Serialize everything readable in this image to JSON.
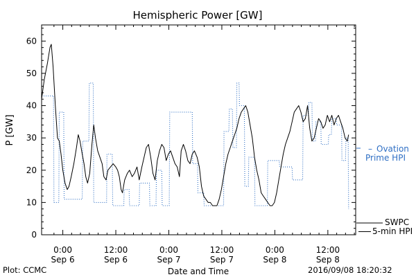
{
  "chart_data": {
    "type": "line",
    "title": "Hemispheric Power [GW]",
    "xlabel": "Date and Time",
    "ylabel": "P [GW]",
    "ylim": [
      0,
      65
    ],
    "yticks": [
      0,
      10,
      20,
      30,
      40,
      50,
      60
    ],
    "x_unit": "hours since 2016-09-05 00:00",
    "xlim": [
      19.2,
      90.3
    ],
    "xticks": [
      {
        "x": 24,
        "time": "0:00",
        "date": "Sep 6"
      },
      {
        "x": 36,
        "time": "12:00",
        "date": "Sep 6"
      },
      {
        "x": 48,
        "time": "0:00",
        "date": "Sep 7"
      },
      {
        "x": 60,
        "time": "12:00",
        "date": "Sep 7"
      },
      {
        "x": 72,
        "time": "0:00",
        "date": "Sep 8"
      },
      {
        "x": 84,
        "time": "12:00",
        "date": "Sep 8"
      }
    ],
    "series": [
      {
        "name": "SWPC 5-min HPI",
        "color": "#000000",
        "style": "solid",
        "points": [
          [
            19.2,
            42
          ],
          [
            19.8,
            48
          ],
          [
            20.5,
            53
          ],
          [
            21.1,
            58
          ],
          [
            21.4,
            59
          ],
          [
            21.8,
            52
          ],
          [
            22.3,
            40
          ],
          [
            22.8,
            30
          ],
          [
            23.2,
            29
          ],
          [
            23.6,
            25
          ],
          [
            24.0,
            20
          ],
          [
            24.5,
            16
          ],
          [
            25.0,
            14
          ],
          [
            25.4,
            15
          ],
          [
            25.9,
            18
          ],
          [
            26.5,
            22
          ],
          [
            27.1,
            27
          ],
          [
            27.5,
            31
          ],
          [
            27.9,
            29
          ],
          [
            28.4,
            25
          ],
          [
            28.8,
            22
          ],
          [
            29.2,
            18
          ],
          [
            29.6,
            16
          ],
          [
            30.1,
            19
          ],
          [
            30.6,
            28
          ],
          [
            31.0,
            34
          ],
          [
            31.4,
            30
          ],
          [
            31.9,
            26
          ],
          [
            32.4,
            24
          ],
          [
            32.9,
            22
          ],
          [
            33.3,
            18
          ],
          [
            33.8,
            17
          ],
          [
            34.2,
            20
          ],
          [
            34.8,
            21
          ],
          [
            35.4,
            22
          ],
          [
            36.0,
            21
          ],
          [
            36.4,
            20
          ],
          [
            36.8,
            18
          ],
          [
            37.2,
            14
          ],
          [
            37.5,
            13
          ],
          [
            38.0,
            17
          ],
          [
            38.6,
            19
          ],
          [
            39.1,
            20
          ],
          [
            39.7,
            18
          ],
          [
            40.2,
            19
          ],
          [
            40.8,
            21
          ],
          [
            41.3,
            17
          ],
          [
            41.9,
            21
          ],
          [
            42.4,
            24
          ],
          [
            42.9,
            27
          ],
          [
            43.4,
            28
          ],
          [
            43.9,
            24
          ],
          [
            44.4,
            19
          ],
          [
            44.9,
            17
          ],
          [
            45.4,
            23
          ],
          [
            45.9,
            26
          ],
          [
            46.4,
            28
          ],
          [
            46.9,
            27
          ],
          [
            47.4,
            23
          ],
          [
            47.9,
            25
          ],
          [
            48.4,
            26
          ],
          [
            48.9,
            24
          ],
          [
            49.4,
            22
          ],
          [
            49.9,
            21
          ],
          [
            50.4,
            18
          ],
          [
            50.8,
            26
          ],
          [
            51.3,
            28
          ],
          [
            51.8,
            26
          ],
          [
            52.3,
            23
          ],
          [
            52.8,
            22
          ],
          [
            53.3,
            25
          ],
          [
            53.8,
            26
          ],
          [
            54.4,
            24
          ],
          [
            54.9,
            21
          ],
          [
            55.4,
            15
          ],
          [
            55.9,
            12
          ],
          [
            56.4,
            11
          ],
          [
            56.9,
            10
          ],
          [
            57.4,
            10
          ],
          [
            57.9,
            9
          ],
          [
            58.4,
            9
          ],
          [
            58.9,
            9
          ],
          [
            59.4,
            11
          ],
          [
            59.9,
            14
          ],
          [
            60.4,
            18
          ],
          [
            60.9,
            22
          ],
          [
            61.4,
            25
          ],
          [
            61.9,
            27
          ],
          [
            62.4,
            29
          ],
          [
            62.9,
            31
          ],
          [
            63.4,
            33
          ],
          [
            63.9,
            36
          ],
          [
            64.4,
            38
          ],
          [
            64.9,
            39
          ],
          [
            65.4,
            40
          ],
          [
            65.9,
            38
          ],
          [
            66.4,
            34
          ],
          [
            66.9,
            30
          ],
          [
            67.4,
            24
          ],
          [
            67.9,
            20
          ],
          [
            68.4,
            17
          ],
          [
            68.9,
            13
          ],
          [
            69.4,
            12
          ],
          [
            69.9,
            11
          ],
          [
            70.4,
            10
          ],
          [
            70.9,
            9
          ],
          [
            71.4,
            9
          ],
          [
            71.9,
            10
          ],
          [
            72.4,
            13
          ],
          [
            72.9,
            17
          ],
          [
            73.4,
            21
          ],
          [
            73.9,
            25
          ],
          [
            74.4,
            28
          ],
          [
            74.9,
            30
          ],
          [
            75.4,
            32
          ],
          [
            75.9,
            35
          ],
          [
            76.4,
            38
          ],
          [
            76.9,
            39
          ],
          [
            77.4,
            40
          ],
          [
            77.9,
            38
          ],
          [
            78.4,
            35
          ],
          [
            78.9,
            36
          ],
          [
            79.4,
            40
          ],
          [
            79.9,
            33
          ],
          [
            80.4,
            29
          ],
          [
            80.9,
            30
          ],
          [
            81.4,
            33
          ],
          [
            81.9,
            36
          ],
          [
            82.4,
            35
          ],
          [
            82.9,
            33
          ],
          [
            83.4,
            34
          ],
          [
            83.9,
            37
          ],
          [
            84.4,
            35
          ],
          [
            84.9,
            37
          ],
          [
            85.4,
            34
          ],
          [
            85.9,
            36
          ],
          [
            86.4,
            37
          ],
          [
            86.9,
            35
          ],
          [
            87.4,
            33
          ],
          [
            87.9,
            30
          ],
          [
            88.4,
            29
          ],
          [
            88.7,
            31
          ]
        ]
      },
      {
        "name": "Ovation Prime HPI",
        "color": "#2f6fc4",
        "style": "dotted",
        "points": [
          [
            19.2,
            43
          ],
          [
            21.9,
            43
          ],
          [
            22.0,
            10
          ],
          [
            23.1,
            10
          ],
          [
            23.2,
            38
          ],
          [
            24.2,
            38
          ],
          [
            24.3,
            11
          ],
          [
            28.4,
            11
          ],
          [
            28.5,
            29
          ],
          [
            29.9,
            29
          ],
          [
            30.0,
            47
          ],
          [
            30.9,
            47
          ],
          [
            31.0,
            10
          ],
          [
            33.9,
            10
          ],
          [
            34.0,
            25
          ],
          [
            35.2,
            25
          ],
          [
            35.3,
            9
          ],
          [
            37.8,
            9
          ],
          [
            37.9,
            14
          ],
          [
            39.0,
            14
          ],
          [
            39.1,
            9
          ],
          [
            41.3,
            9
          ],
          [
            41.4,
            16
          ],
          [
            43.6,
            16
          ],
          [
            43.7,
            9
          ],
          [
            45.1,
            9
          ],
          [
            45.2,
            20
          ],
          [
            46.4,
            20
          ],
          [
            46.5,
            9
          ],
          [
            48.1,
            9
          ],
          [
            48.2,
            38
          ],
          [
            53.3,
            38
          ],
          [
            53.4,
            22
          ],
          [
            54.5,
            22
          ],
          [
            54.6,
            13
          ],
          [
            55.9,
            13
          ],
          [
            56.0,
            9
          ],
          [
            60.4,
            9
          ],
          [
            60.5,
            32
          ],
          [
            61.6,
            32
          ],
          [
            61.7,
            39
          ],
          [
            62.4,
            39
          ],
          [
            62.5,
            27
          ],
          [
            63.3,
            27
          ],
          [
            63.4,
            47
          ],
          [
            63.9,
            47
          ],
          [
            64.0,
            40
          ],
          [
            65.1,
            40
          ],
          [
            65.2,
            15
          ],
          [
            66.0,
            15
          ],
          [
            66.1,
            24
          ],
          [
            67.4,
            24
          ],
          [
            67.5,
            9
          ],
          [
            70.3,
            9
          ],
          [
            70.4,
            23
          ],
          [
            73.0,
            23
          ],
          [
            73.1,
            21
          ],
          [
            75.9,
            21
          ],
          [
            76.0,
            17
          ],
          [
            78.3,
            17
          ],
          [
            78.4,
            37
          ],
          [
            79.6,
            37
          ],
          [
            79.7,
            41
          ],
          [
            80.4,
            41
          ],
          [
            80.5,
            29
          ],
          [
            81.2,
            29
          ],
          [
            81.3,
            35
          ],
          [
            82.4,
            35
          ],
          [
            82.5,
            28
          ],
          [
            84.1,
            28
          ],
          [
            84.2,
            31
          ],
          [
            84.8,
            31
          ],
          [
            84.9,
            36
          ],
          [
            85.9,
            36
          ],
          [
            86.0,
            34
          ],
          [
            87.1,
            34
          ],
          [
            87.2,
            23
          ],
          [
            88.0,
            23
          ],
          [
            88.1,
            30
          ],
          [
            88.6,
            30
          ],
          [
            88.7,
            8
          ]
        ]
      }
    ],
    "legend": [
      {
        "series": "Ovation Prime HPI",
        "lines": [
          "Ovation",
          "Prime HPI"
        ],
        "placement": "right"
      },
      {
        "series": "SWPC 5-min HPI",
        "lines": [
          "SWPC",
          "5-min HPI"
        ],
        "placement": "right"
      }
    ]
  },
  "footer": {
    "plot_by": "Plot: CCMC",
    "timestamp": "2016/09/08 18:20:32"
  }
}
